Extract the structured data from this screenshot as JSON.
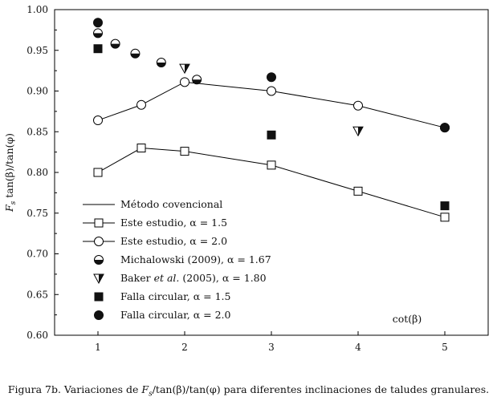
{
  "chart_data": {
    "type": "line",
    "title": "",
    "xlabel": "cot(β)",
    "ylabel": "Fs tan(β)/tan(φ)",
    "ylabel_main": "F",
    "ylabel_sub": "s",
    "ylabel_rest": " tan(β)/tan(φ)",
    "xlim": [
      0.5,
      5.5
    ],
    "ylim": [
      0.6,
      1.0
    ],
    "xticks": [
      1,
      2,
      3,
      4,
      5
    ],
    "yticks": [
      0.6,
      0.65,
      0.7,
      0.75,
      0.8,
      0.85,
      0.9,
      0.95,
      1.0
    ],
    "ytick_labels": [
      "0.60",
      "0.65",
      "0.70",
      "0.75",
      "0.80",
      "0.85",
      "0.90",
      "0.95",
      "1.00"
    ],
    "xtick_labels": [
      "1",
      "2",
      "3",
      "4",
      "5"
    ],
    "legend_position": "bottom-left",
    "series": [
      {
        "name": "Método covencional",
        "label_text": "Método covencional",
        "marker": "none",
        "line": true,
        "x": [
          0.5,
          5.5
        ],
        "values": [
          1.0,
          1.0
        ]
      },
      {
        "name": "Este estudio, α = 1.5",
        "label_text": "Este estudio, α = 1.5",
        "marker": "square-open",
        "line": true,
        "x": [
          1,
          1.5,
          2,
          3,
          4,
          5
        ],
        "values": [
          0.8,
          0.83,
          0.826,
          0.809,
          0.777,
          0.745
        ]
      },
      {
        "name": "Este estudio, α = 2.0",
        "label_text": "Este estudio, α = 2.0",
        "marker": "circle-open",
        "line": true,
        "x": [
          1,
          1.5,
          2,
          3,
          4,
          5
        ],
        "values": [
          0.864,
          0.883,
          0.911,
          0.9,
          0.882,
          0.855
        ]
      },
      {
        "name": "Michalowski (2009), α = 1.67",
        "label_text": "Michalowski (2009), α = 1.67",
        "marker": "circle-half",
        "line": false,
        "x": [
          1,
          1.2,
          1.43,
          1.73,
          2.14
        ],
        "values": [
          0.971,
          0.958,
          0.946,
          0.935,
          0.914
        ]
      },
      {
        "name": "Baker et al. (2005), α = 1.80",
        "label_pre": "Baker ",
        "label_italic": "et al.",
        "label_post": " (2005), α = 1.80",
        "marker": "triangle-half",
        "line": false,
        "x": [
          2,
          4
        ],
        "values": [
          0.928,
          0.851
        ]
      },
      {
        "name": "Falla circular, α = 1.5",
        "label_text": "Falla circular, α = 1.5",
        "marker": "square-filled",
        "line": false,
        "x": [
          1,
          3,
          5
        ],
        "values": [
          0.952,
          0.846,
          0.759
        ]
      },
      {
        "name": "Falla circular, α = 2.0",
        "label_text": "Falla circular, α = 2.0",
        "marker": "circle-filled",
        "line": false,
        "x": [
          1,
          3,
          5
        ],
        "values": [
          0.984,
          0.917,
          0.855
        ]
      }
    ]
  },
  "caption": {
    "prefix": "Figura 7b. Variaciones de ",
    "main": "F",
    "sub": "s",
    "suffix": "/tan(β)/tan(φ) para diferentes inclinaciones de taludes granulares."
  }
}
